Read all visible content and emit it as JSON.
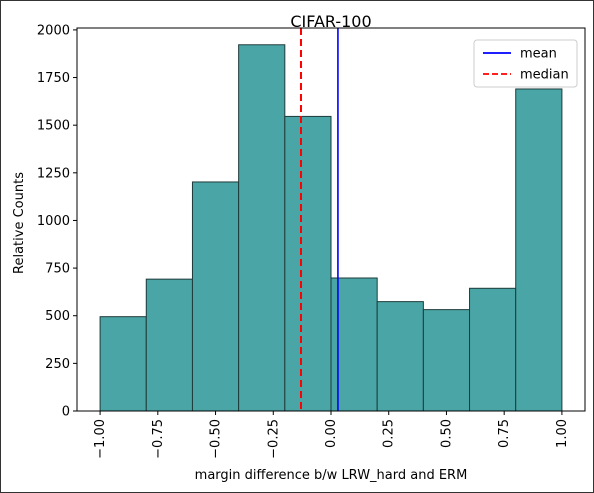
{
  "chart_data": {
    "type": "bar",
    "title": "CIFAR-100",
    "xlabel": "margin difference b/w LRW_hard and ERM",
    "ylabel": "Relative Counts",
    "xlim": [
      -1.1,
      1.1
    ],
    "ylim": [
      0,
      2010
    ],
    "bins": [
      {
        "x0": -1.0,
        "x1": -0.8,
        "value": 495
      },
      {
        "x0": -0.8,
        "x1": -0.6,
        "value": 692
      },
      {
        "x0": -0.6,
        "x1": -0.4,
        "value": 1202
      },
      {
        "x0": -0.4,
        "x1": -0.2,
        "value": 1922
      },
      {
        "x0": -0.2,
        "x1": 0.0,
        "value": 1546
      },
      {
        "x0": 0.0,
        "x1": 0.2,
        "value": 698
      },
      {
        "x0": 0.2,
        "x1": 0.4,
        "value": 574
      },
      {
        "x0": 0.4,
        "x1": 0.6,
        "value": 532
      },
      {
        "x0": 0.6,
        "x1": 0.8,
        "value": 644
      },
      {
        "x0": 0.8,
        "x1": 1.0,
        "value": 1690
      }
    ],
    "x_ticks": [
      -1.0,
      -0.75,
      -0.5,
      -0.25,
      0.0,
      0.25,
      0.5,
      0.75,
      1.0
    ],
    "x_tick_labels": [
      "−1.00",
      "−0.75",
      "−0.50",
      "−0.25",
      "0.00",
      "0.25",
      "0.50",
      "0.75",
      "1.00"
    ],
    "y_ticks": [
      0,
      250,
      500,
      750,
      1000,
      1250,
      1500,
      1750,
      2000
    ],
    "y_tick_labels": [
      "0",
      "250",
      "500",
      "750",
      "1000",
      "1250",
      "1500",
      "1750",
      "2000"
    ],
    "mean": 0.03,
    "median": -0.13,
    "legend": {
      "placement": "top-right",
      "entries": [
        {
          "label": "mean",
          "color": "#0000ff",
          "style": "solid"
        },
        {
          "label": "median",
          "color": "#ff0000",
          "style": "dashed"
        }
      ]
    },
    "colors": {
      "bar_fill": "#4aa6a6",
      "bar_edge": "#1f3a3a",
      "mean": "#0000ff",
      "median": "#ff0000"
    },
    "grid": false
  }
}
